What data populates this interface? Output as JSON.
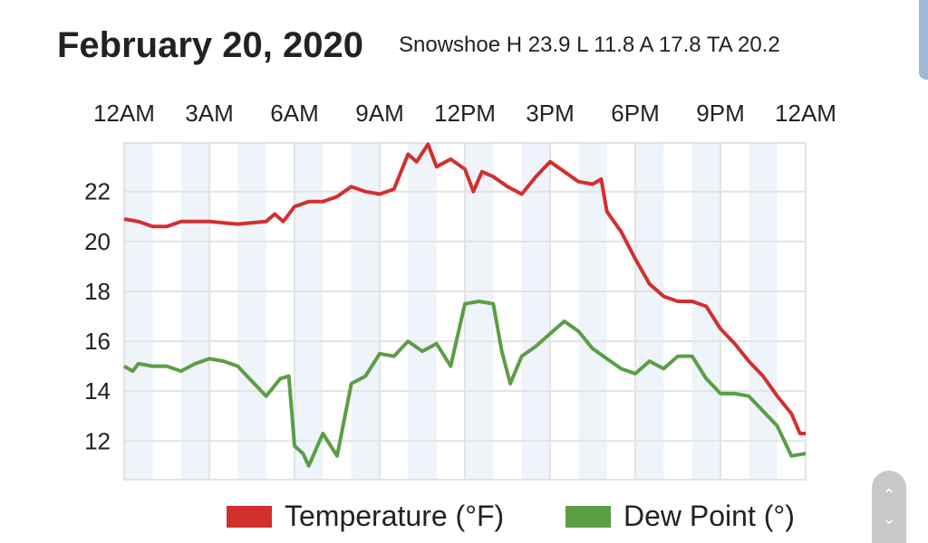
{
  "header": {
    "title": "February 20, 2020",
    "subtitle": "Snowshoe H 23.9 L 11.8 A 17.8 TA 20.2"
  },
  "chart_data": {
    "type": "line",
    "title": "February 20, 2020",
    "x_tick_labels": [
      "12AM",
      "3AM",
      "6AM",
      "9AM",
      "12PM",
      "3PM",
      "6PM",
      "9PM",
      "12AM"
    ],
    "x_range_hours": [
      0,
      24
    ],
    "y_ticks": [
      12,
      14,
      16,
      18,
      20,
      22
    ],
    "ylim": [
      10.45,
      23.95
    ],
    "grid": true,
    "legend_placement": "bottom",
    "series": [
      {
        "name": "Temperature (°F)",
        "color": "#d32f2f",
        "x": [
          0,
          0.5,
          1,
          1.5,
          2,
          3,
          4,
          5,
          5.3,
          5.6,
          6,
          6.5,
          7,
          7.5,
          8,
          8.5,
          9,
          9.5,
          10,
          10.3,
          10.7,
          11,
          11.5,
          12,
          12.3,
          12.6,
          13,
          13.5,
          14,
          14.5,
          15,
          15.5,
          16,
          16.5,
          16.8,
          17,
          17.5,
          18,
          18.5,
          19,
          19.5,
          20,
          20.5,
          21,
          21.5,
          22,
          22.5,
          23,
          23.5,
          23.8,
          24
        ],
        "y": [
          20.9,
          20.8,
          20.6,
          20.6,
          20.8,
          20.8,
          20.7,
          20.8,
          21.1,
          20.8,
          21.4,
          21.6,
          21.6,
          21.8,
          22.2,
          22.0,
          21.9,
          22.1,
          23.5,
          23.2,
          23.9,
          23.0,
          23.3,
          22.9,
          22.0,
          22.8,
          22.6,
          22.2,
          21.9,
          22.6,
          23.2,
          22.8,
          22.4,
          22.3,
          22.5,
          21.2,
          20.4,
          19.3,
          18.3,
          17.8,
          17.6,
          17.6,
          17.4,
          16.5,
          15.9,
          15.2,
          14.6,
          13.8,
          13.1,
          12.3,
          12.3
        ]
      },
      {
        "name": "Dew Point (°)",
        "color": "#5b9e45",
        "x": [
          0,
          0.3,
          0.5,
          1,
          1.5,
          2,
          2.5,
          3,
          3.5,
          4,
          4.5,
          5,
          5.5,
          5.8,
          6,
          6.3,
          6.5,
          7,
          7.5,
          8,
          8.5,
          9,
          9.5,
          10,
          10.5,
          11,
          11.5,
          12,
          12.5,
          13,
          13.3,
          13.6,
          14,
          14.5,
          15,
          15.5,
          16,
          16.5,
          17,
          17.5,
          18,
          18.5,
          19,
          19.5,
          20,
          20.5,
          21,
          21.5,
          22,
          22.5,
          23,
          23.5,
          24
        ],
        "y": [
          15.0,
          14.8,
          15.1,
          15.0,
          15.0,
          14.8,
          15.1,
          15.3,
          15.2,
          15.0,
          14.4,
          13.8,
          14.5,
          14.6,
          11.8,
          11.5,
          11.0,
          12.3,
          11.4,
          14.3,
          14.6,
          15.5,
          15.4,
          16.0,
          15.6,
          15.9,
          15.0,
          17.5,
          17.6,
          17.5,
          15.6,
          14.3,
          15.4,
          15.8,
          16.3,
          16.8,
          16.4,
          15.7,
          15.3,
          14.9,
          14.7,
          15.2,
          14.9,
          15.4,
          15.4,
          14.5,
          13.9,
          13.9,
          13.8,
          13.2,
          12.6,
          11.4,
          11.5
        ]
      }
    ]
  },
  "scroll": {
    "up": "⌃",
    "down": "⌄"
  }
}
